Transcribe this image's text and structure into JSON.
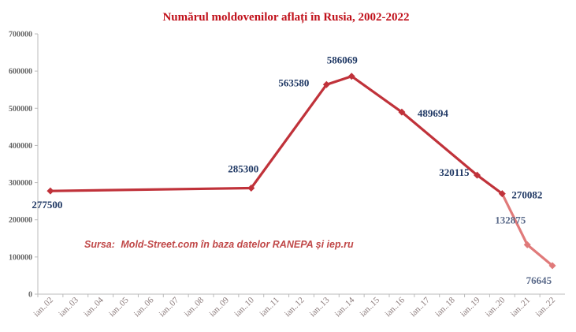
{
  "chart_data": {
    "type": "line",
    "title": "Numărul moldovenilor aflați în Rusia, 2002-2022",
    "source_label": "Sursa:",
    "source_text": "Mold-Street.com în baza datelor RANEPA și iep.ru",
    "categories": [
      "ian..02",
      "ian..03",
      "ian..04",
      "ian..05",
      "ian..06",
      "ian..07",
      "ian..08",
      "ian..09",
      "ian..10",
      "ian..11",
      "ian..12",
      "ian..13",
      "ian..14",
      "ian..15",
      "ian..16",
      "ian..17",
      "ian..18",
      "ian..19",
      "ian..20",
      "ian..21",
      "ian..22"
    ],
    "yticks": [
      "0",
      "100000",
      "200000",
      "300000",
      "400000",
      "500000",
      "600000",
      "700000"
    ],
    "ylim": [
      0,
      700000
    ],
    "series": [
      {
        "points": [
          {
            "x": "ian..02",
            "y": 277500,
            "label": "277500"
          },
          {
            "x": "ian..10",
            "y": 285300,
            "label": "285300"
          },
          {
            "x": "ian..13",
            "y": 563580,
            "label": "563580"
          },
          {
            "x": "ian..14",
            "y": 586069,
            "label": "586069"
          },
          {
            "x": "ian..16",
            "y": 489694,
            "label": "489694"
          },
          {
            "x": "ian..19",
            "y": 320115,
            "label": "320115"
          },
          {
            "x": "ian..20",
            "y": 270082,
            "label": "270082"
          },
          {
            "x": "ian..21",
            "y": 132875,
            "label": "132875"
          },
          {
            "x": "ian..22",
            "y": 76645,
            "label": "76645"
          }
        ]
      }
    ],
    "grid": false,
    "colors": {
      "title": "#c0101a",
      "line_main": "#c0323a",
      "line_light": "#e07a7a",
      "label_dark": "#1f3864",
      "label_light": "#5a6a8a",
      "source": "#c04848",
      "axis": "#bbbbbb"
    }
  }
}
